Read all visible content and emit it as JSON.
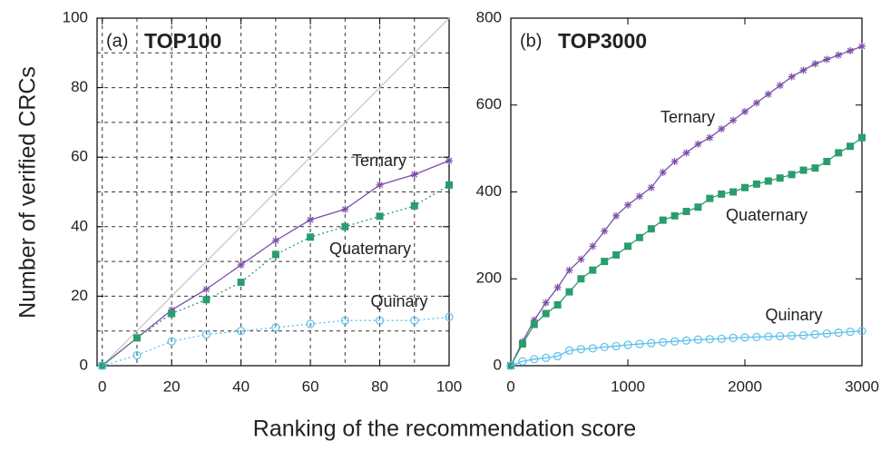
{
  "ylabel": "Number of verified CRCs",
  "xlabel": "Ranking of the recommendation score",
  "chart_data": [
    {
      "type": "line",
      "panel": "(a)",
      "title": "TOP100",
      "x": [
        0,
        10,
        20,
        30,
        40,
        50,
        60,
        70,
        80,
        90,
        100
      ],
      "series": [
        {
          "name": "Ternary",
          "color": "#7b4fa8",
          "marker": "star",
          "dash": "solid",
          "values": [
            0,
            8,
            16,
            22,
            29,
            36,
            42,
            45,
            52,
            55,
            59
          ]
        },
        {
          "name": "Quaternary",
          "color": "#2a9d6e",
          "marker": "square",
          "dash": "dotted",
          "values": [
            0,
            8,
            15,
            19,
            24,
            32,
            37,
            40,
            43,
            46,
            52
          ]
        },
        {
          "name": "Quinary",
          "color": "#5bc0eb",
          "marker": "circle",
          "dash": "dotted",
          "values": [
            0,
            3,
            7,
            9,
            10,
            11,
            12,
            13,
            13,
            13,
            14
          ]
        }
      ],
      "reference": {
        "x": [
          0,
          100
        ],
        "values": [
          0,
          100
        ],
        "color": "#c8c8c8"
      },
      "xlim": [
        -1.5,
        100
      ],
      "ylim": [
        0,
        100
      ],
      "xticks": [
        0,
        20,
        40,
        60,
        80,
        100
      ],
      "yticks": [
        0,
        20,
        40,
        60,
        80,
        100
      ],
      "xminor": [
        10,
        30,
        50,
        70,
        90
      ],
      "yminor": [
        10,
        30,
        50,
        70,
        90
      ],
      "grid": true
    },
    {
      "type": "line",
      "panel": "(b)",
      "title": "TOP3000",
      "x": [
        0,
        100,
        200,
        300,
        400,
        500,
        600,
        700,
        800,
        900,
        1000,
        1100,
        1200,
        1300,
        1400,
        1500,
        1600,
        1700,
        1800,
        1900,
        2000,
        2100,
        2200,
        2300,
        2400,
        2500,
        2600,
        2700,
        2800,
        2900,
        3000
      ],
      "series": [
        {
          "name": "Ternary",
          "color": "#7b4fa8",
          "marker": "star",
          "dash": "solid",
          "values": [
            0,
            55,
            105,
            145,
            180,
            220,
            245,
            275,
            310,
            345,
            370,
            390,
            410,
            445,
            470,
            490,
            510,
            525,
            545,
            565,
            585,
            605,
            625,
            645,
            665,
            680,
            695,
            705,
            715,
            725,
            735
          ]
        },
        {
          "name": "Quaternary",
          "color": "#2a9d6e",
          "marker": "square",
          "dash": "solid",
          "values": [
            0,
            50,
            95,
            120,
            140,
            170,
            200,
            220,
            240,
            255,
            275,
            295,
            315,
            335,
            345,
            355,
            365,
            385,
            395,
            400,
            410,
            418,
            425,
            432,
            440,
            450,
            455,
            470,
            490,
            505,
            525
          ]
        },
        {
          "name": "Quinary",
          "color": "#5bc0eb",
          "marker": "circle",
          "dash": "solid",
          "values": [
            0,
            10,
            15,
            18,
            22,
            35,
            38,
            40,
            43,
            45,
            48,
            50,
            52,
            54,
            56,
            58,
            60,
            61,
            62,
            64,
            65,
            66,
            67,
            68,
            69,
            70,
            72,
            74,
            76,
            78,
            80
          ]
        }
      ],
      "xlim": [
        0,
        3000
      ],
      "ylim": [
        0,
        800
      ],
      "xticks": [
        0,
        1000,
        2000,
        3000
      ],
      "yticks": [
        0,
        200,
        400,
        600,
        800
      ],
      "grid": false
    }
  ]
}
